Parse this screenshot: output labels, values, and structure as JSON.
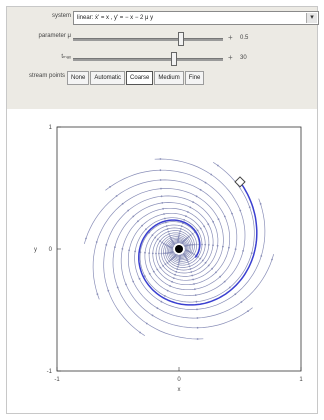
{
  "controls": {
    "system": {
      "label": "system",
      "value": "linear: ẋ' = x ,  y' = − x − 2 μ y"
    },
    "parameter": {
      "label": "parameter μ",
      "value_text": "0.5",
      "fraction": 0.72
    },
    "tmax": {
      "label": "tₘₐₓ",
      "value_text": "30",
      "fraction": 0.67
    },
    "stream_points": {
      "label": "stream points",
      "options": [
        "None",
        "Automatic",
        "Coarse",
        "Medium",
        "Fine"
      ],
      "selected": "Coarse"
    }
  },
  "plot": {
    "x_ticks": [
      "-1",
      "0",
      "1"
    ],
    "y_ticks": [
      "1",
      "0",
      "-1"
    ],
    "xlabel": "x",
    "ylabel": "y",
    "colors": {
      "stream": "#8a8fb8",
      "trajectory": "#3a3fd0",
      "equilibrium": "#000000"
    }
  },
  "chart_data": {
    "type": "stream",
    "xlim": [
      -1,
      1
    ],
    "ylim": [
      -1,
      1
    ],
    "equilibrium": {
      "x": 0,
      "y": 0
    },
    "initial_point": {
      "x": 0.5,
      "y": 0.55
    },
    "spiral": {
      "turns": 2.2,
      "growth": 0.55
    }
  }
}
